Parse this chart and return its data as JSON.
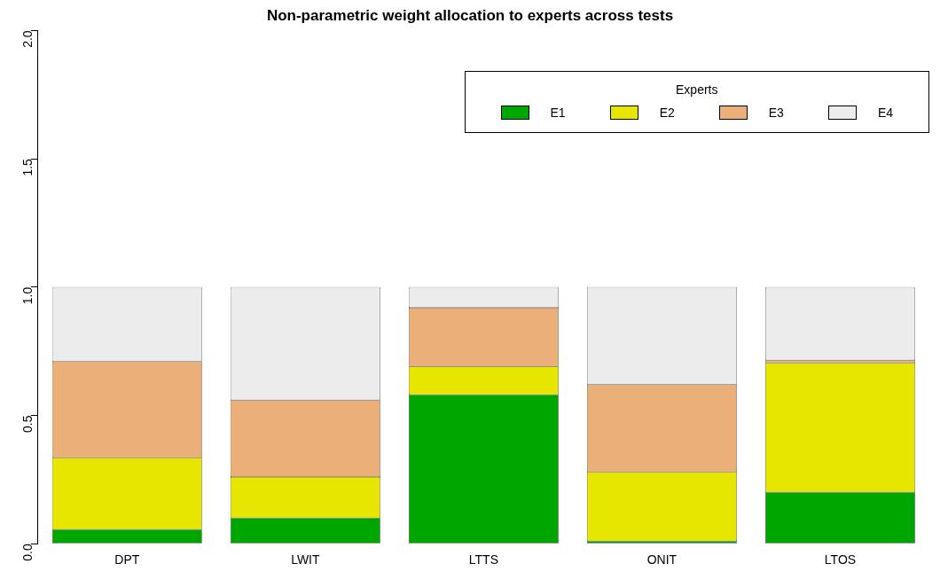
{
  "chart_data": {
    "type": "bar",
    "title": "Non-parametric weight allocation to experts across tests",
    "stacked": true,
    "legend": "top right",
    "legend_title": "Experts",
    "grid": false,
    "categories": [
      "DPT",
      "LWIT",
      "LTTS",
      "ONIT",
      "LTOS"
    ],
    "series": [
      {
        "name": "E1",
        "color": "#00a600",
        "values": [
          0.055,
          0.1,
          0.58,
          0.01,
          0.2
        ]
      },
      {
        "name": "E2",
        "color": "#e6e600",
        "values": [
          0.28,
          0.16,
          0.11,
          0.27,
          0.505
        ]
      },
      {
        "name": "E3",
        "color": "#ebb07a",
        "values": [
          0.375,
          0.3,
          0.23,
          0.34,
          0.01
        ]
      },
      {
        "name": "E4",
        "color": "#ececec",
        "values": [
          0.29,
          0.44,
          0.08,
          0.38,
          0.285
        ]
      }
    ],
    "ylim": [
      0,
      2
    ],
    "yticks": [
      {
        "value": 0,
        "label": "0.0"
      },
      {
        "value": 0.5,
        "label": "0.5"
      },
      {
        "value": 1,
        "label": "1.0"
      },
      {
        "value": 1.5,
        "label": "1.5"
      },
      {
        "value": 2,
        "label": "2.0"
      }
    ]
  }
}
